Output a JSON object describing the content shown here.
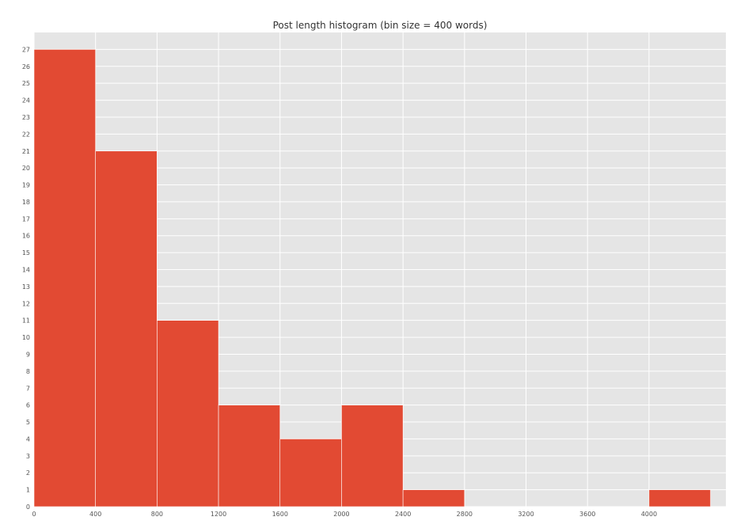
{
  "chart_data": {
    "type": "bar",
    "title": "Post length histogram (bin size = 400 words)",
    "xlabel": "",
    "ylabel": "",
    "bin_size": 400,
    "bins": [
      {
        "start": 0,
        "end": 400,
        "count": 27
      },
      {
        "start": 400,
        "end": 800,
        "count": 21
      },
      {
        "start": 800,
        "end": 1200,
        "count": 11
      },
      {
        "start": 1200,
        "end": 1600,
        "count": 6
      },
      {
        "start": 1600,
        "end": 2000,
        "count": 4
      },
      {
        "start": 2000,
        "end": 2400,
        "count": 6
      },
      {
        "start": 2400,
        "end": 2800,
        "count": 1
      },
      {
        "start": 2800,
        "end": 3200,
        "count": 0
      },
      {
        "start": 3200,
        "end": 3600,
        "count": 0
      },
      {
        "start": 3600,
        "end": 4000,
        "count": 0
      },
      {
        "start": 4000,
        "end": 4400,
        "count": 1
      }
    ],
    "xlim": [
      0,
      4500
    ],
    "ylim": [
      0,
      28
    ],
    "x_ticks": [
      0,
      400,
      800,
      1200,
      1600,
      2000,
      2400,
      2800,
      3200,
      3600,
      4000
    ],
    "y_ticks": [
      0,
      1,
      2,
      3,
      4,
      5,
      6,
      7,
      8,
      9,
      10,
      11,
      12,
      13,
      14,
      15,
      16,
      17,
      18,
      19,
      20,
      21,
      22,
      23,
      24,
      25,
      26,
      27
    ],
    "grid": true,
    "colors": {
      "bar": "#E24A33",
      "background": "#E5E5E5",
      "grid": "#FFFFFF"
    }
  }
}
